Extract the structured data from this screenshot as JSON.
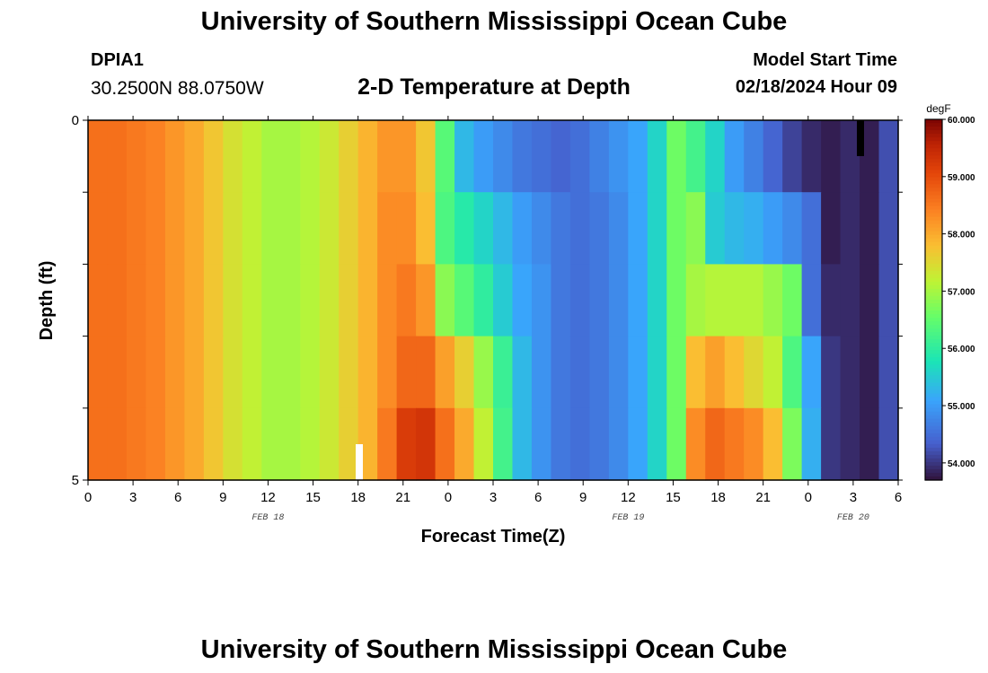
{
  "header": {
    "title": "University of Southern Mississippi Ocean Cube",
    "station_id": "DPIA1",
    "coordinates": "30.2500N  88.0750W",
    "subtitle": "2-D Temperature at Depth",
    "model_start_label": "Model Start Time",
    "model_start_value": "02/18/2024 Hour 09"
  },
  "footer": {
    "title": "University of Southern Mississippi Ocean Cube"
  },
  "chart_data": {
    "type": "heatmap",
    "title": "2-D Temperature at Depth",
    "xlabel": "Forecast Time(Z)",
    "ylabel": "Depth (ft)",
    "x_tick_labels": [
      "0",
      "3",
      "6",
      "9",
      "12",
      "15",
      "18",
      "21",
      "0",
      "3",
      "6",
      "9",
      "12",
      "15",
      "18",
      "21",
      "0",
      "3",
      "6"
    ],
    "y_tick_labels": [
      "0",
      "5"
    ],
    "ylim": [
      0,
      5
    ],
    "date_labels": [
      {
        "label": "FEB 18",
        "at_tick": 4
      },
      {
        "label": "FEB 19",
        "at_tick": 12
      },
      {
        "label": "FEB 20",
        "at_tick": 17
      }
    ],
    "colorbar": {
      "unit": "degF",
      "range": [
        53.7,
        60.0
      ],
      "tick_labels": [
        "60.000",
        "59.000",
        "58.000",
        "57.000",
        "56.000",
        "55.000",
        "54.000"
      ],
      "tick_values": [
        60,
        59,
        58,
        57,
        56,
        55,
        54
      ]
    },
    "layers": [
      {
        "depth": "0-1 ft",
        "temps_degF": [
          58.6,
          58.6,
          58.5,
          58.4,
          58.2,
          58.0,
          57.7,
          57.4,
          57.2,
          57.0,
          57.0,
          57.1,
          57.3,
          57.6,
          57.9,
          58.2,
          58.2,
          57.7,
          56.4,
          55.3,
          55.0,
          54.8,
          54.6,
          54.5,
          54.4,
          54.5,
          54.7,
          54.9,
          55.1,
          55.6,
          56.6,
          56.2,
          55.6,
          55.0,
          54.7,
          54.4,
          54.1,
          53.9,
          53.8,
          53.9,
          53.8,
          54.2
        ]
      },
      {
        "depth": "1-2 ft",
        "temps_degF": [
          58.6,
          58.6,
          58.5,
          58.4,
          58.2,
          58.0,
          57.7,
          57.4,
          57.2,
          57.0,
          57.0,
          57.1,
          57.3,
          57.6,
          57.9,
          58.3,
          58.3,
          57.8,
          56.3,
          55.9,
          55.6,
          55.3,
          55.0,
          54.8,
          54.6,
          54.5,
          54.6,
          54.8,
          55.1,
          55.6,
          56.6,
          56.8,
          55.5,
          55.3,
          55.2,
          55.0,
          54.8,
          54.5,
          53.8,
          53.9,
          53.8,
          54.2
        ]
      },
      {
        "depth": "2-3 ft",
        "temps_degF": [
          58.6,
          58.6,
          58.5,
          58.4,
          58.2,
          58.0,
          57.7,
          57.4,
          57.2,
          57.0,
          57.0,
          57.1,
          57.3,
          57.6,
          57.9,
          58.3,
          58.5,
          58.2,
          56.8,
          56.4,
          56.0,
          55.5,
          55.1,
          54.9,
          54.6,
          54.5,
          54.6,
          54.8,
          55.1,
          55.6,
          56.6,
          57.0,
          57.1,
          57.1,
          57.1,
          56.9,
          56.6,
          54.5,
          53.9,
          53.9,
          53.8,
          54.2
        ]
      },
      {
        "depth": "3-4 ft",
        "temps_degF": [
          58.6,
          58.6,
          58.5,
          58.4,
          58.2,
          58.0,
          57.7,
          57.4,
          57.2,
          57.0,
          57.0,
          57.1,
          57.3,
          57.6,
          57.9,
          58.3,
          58.7,
          58.7,
          58.1,
          57.6,
          56.9,
          56.1,
          55.3,
          54.9,
          54.6,
          54.5,
          54.6,
          54.8,
          55.1,
          55.6,
          56.6,
          57.8,
          58.1,
          57.8,
          57.5,
          57.2,
          56.3,
          55.1,
          54.0,
          53.9,
          53.8,
          54.2
        ]
      },
      {
        "depth": "4-5 ft",
        "temps_degF": [
          58.6,
          58.6,
          58.5,
          58.4,
          58.2,
          58.0,
          57.7,
          57.4,
          57.2,
          57.0,
          57.0,
          57.1,
          57.3,
          57.6,
          57.9,
          58.5,
          59.2,
          59.3,
          58.6,
          58.0,
          57.2,
          56.2,
          55.3,
          54.9,
          54.6,
          54.5,
          54.6,
          54.8,
          55.1,
          55.6,
          56.6,
          58.3,
          58.7,
          58.5,
          58.3,
          57.8,
          56.7,
          55.2,
          54.0,
          53.9,
          53.8,
          54.2
        ]
      }
    ],
    "grid": false,
    "legend": "right"
  }
}
